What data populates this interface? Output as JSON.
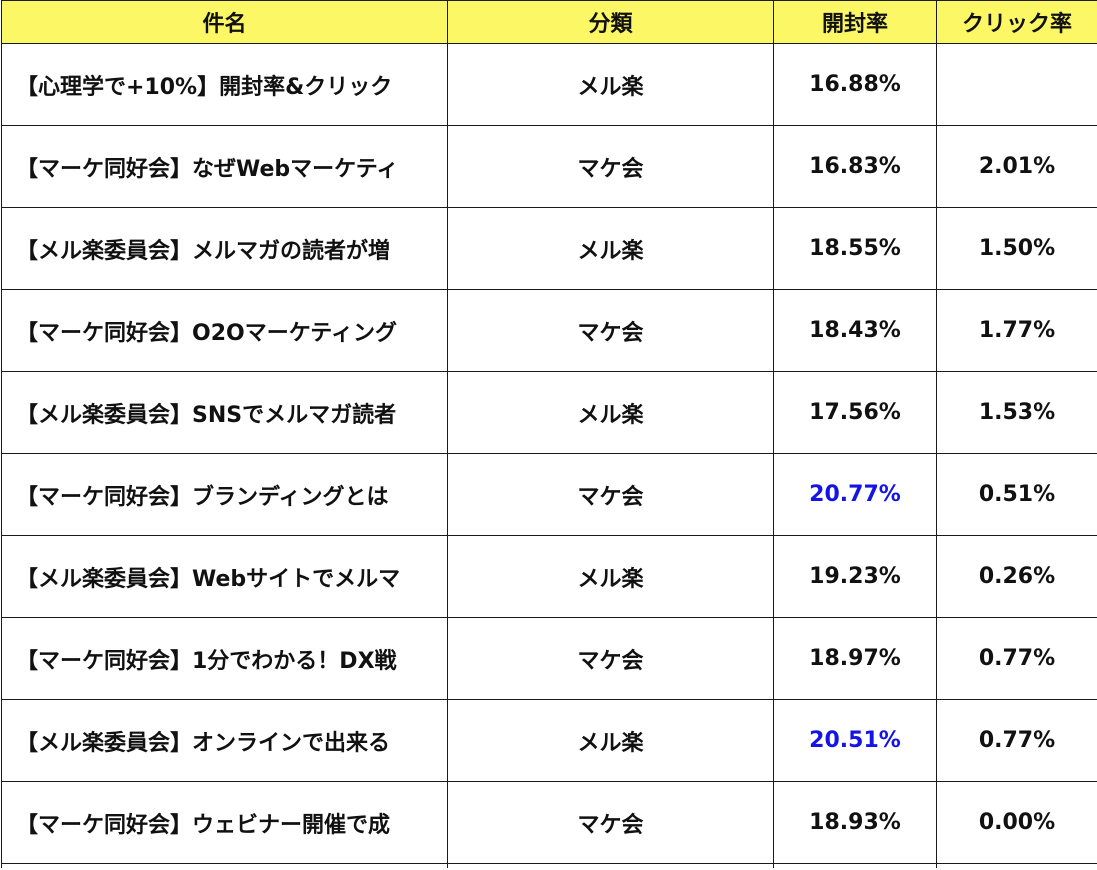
{
  "table": {
    "headers": {
      "subject": "件名",
      "category": "分類",
      "open_rate": "開封率",
      "click_rate": "クリック率"
    },
    "highlight_color": "#1414e6",
    "header_bg": "#fcf764",
    "rows": [
      {
        "subject": "【心理学で+10%】開封率&クリック",
        "category": "メル楽",
        "open_rate": "16.88%",
        "click_rate": "",
        "open_highlight": false
      },
      {
        "subject": "【マーケ同好会】なぜWebマーケティ",
        "category": "マケ会",
        "open_rate": "16.83%",
        "click_rate": "2.01%",
        "open_highlight": false
      },
      {
        "subject": "【メル楽委員会】メルマガの読者が増",
        "category": "メル楽",
        "open_rate": "18.55%",
        "click_rate": "1.50%",
        "open_highlight": false
      },
      {
        "subject": "【マーケ同好会】O2Oマーケティング",
        "category": "マケ会",
        "open_rate": "18.43%",
        "click_rate": "1.77%",
        "open_highlight": false
      },
      {
        "subject": "【メル楽委員会】SNSでメルマガ読者",
        "category": "メル楽",
        "open_rate": "17.56%",
        "click_rate": "1.53%",
        "open_highlight": false
      },
      {
        "subject": "【マーケ同好会】ブランディングとは",
        "category": "マケ会",
        "open_rate": "20.77%",
        "click_rate": "0.51%",
        "open_highlight": true
      },
      {
        "subject": "【メル楽委員会】Webサイトでメルマ",
        "category": "メル楽",
        "open_rate": "19.23%",
        "click_rate": "0.26%",
        "open_highlight": false
      },
      {
        "subject": "【マーケ同好会】1分でわかる！DX戦",
        "category": "マケ会",
        "open_rate": "18.97%",
        "click_rate": "0.77%",
        "open_highlight": false
      },
      {
        "subject": "【メル楽委員会】オンラインで出来る",
        "category": "メル楽",
        "open_rate": "20.51%",
        "click_rate": "0.77%",
        "open_highlight": true
      },
      {
        "subject": "【マーケ同好会】ウェビナー開催で成",
        "category": "マケ会",
        "open_rate": "18.93%",
        "click_rate": "0.00%",
        "open_highlight": false
      }
    ]
  }
}
